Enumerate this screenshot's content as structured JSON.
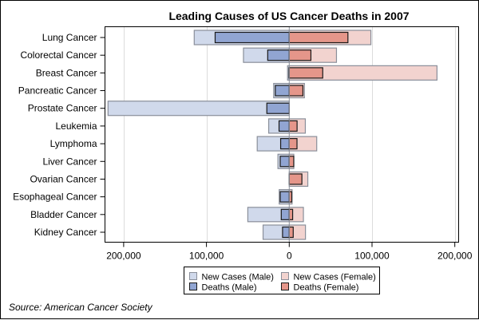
{
  "chart_data": {
    "type": "bar",
    "orientation": "horizontal",
    "layout": "butterfly",
    "title": "Leading Causes of US Cancer Deaths in 2007",
    "xlabel": "",
    "ylabel": "",
    "xlim": [
      -215000,
      205000
    ],
    "x_ticks": [
      -200000,
      -100000,
      0,
      100000,
      200000
    ],
    "x_tick_labels": [
      "200,000",
      "100,000",
      "0",
      "100,000",
      "200,000"
    ],
    "grid": true,
    "legend_position": "bottom",
    "categories": [
      "Lung Cancer",
      "Colorectal Cancer",
      "Breast Cancer",
      "Pancreatic Cancer",
      "Prostate Cancer",
      "Leukemia",
      "Lymphoma",
      "Liver Cancer",
      "Ovarian Cancer",
      "Esophageal Cancer",
      "Bladder Cancer",
      "Kidney Cancer"
    ],
    "series": [
      {
        "name": "New Cases (Male)",
        "side": "left",
        "kind": "new",
        "color": "#D0D9EB",
        "values": [
          114760,
          55290,
          2030,
          18830,
          218890,
          24800,
          38670,
          13650,
          0,
          12130,
          50040,
          31590
        ]
      },
      {
        "name": "Deaths (Male)",
        "side": "left",
        "kind": "deaths",
        "color": "#91A5D2",
        "values": [
          89510,
          26000,
          450,
          16840,
          27050,
          12320,
          10370,
          10900,
          0,
          10900,
          9630,
          8080
        ]
      },
      {
        "name": "New Cases (Female)",
        "side": "right",
        "kind": "new",
        "color": "#F2D3CF",
        "values": [
          98620,
          57050,
          178480,
          18340,
          0,
          19440,
          33190,
          5510,
          22430,
          3430,
          17120,
          19600
        ]
      },
      {
        "name": "Deaths (Female)",
        "side": "right",
        "kind": "deaths",
        "color": "#E5968A",
        "values": [
          70880,
          26180,
          40460,
          16530,
          0,
          9470,
          9370,
          5460,
          15280,
          3040,
          4120,
          4810
        ]
      }
    ],
    "legend": [
      {
        "label": "New Cases (Male)",
        "color": "#D0D9EB",
        "kind": "new"
      },
      {
        "label": "New Cases (Female)",
        "color": "#F2D3CF",
        "kind": "new"
      },
      {
        "label": "Deaths (Male)",
        "color": "#91A5D2",
        "kind": "deaths"
      },
      {
        "label": "Deaths (Female)",
        "color": "#E5968A",
        "kind": "deaths"
      }
    ],
    "source": "Source: American Cancer Society",
    "colors": {
      "new_outline": "#8A8F9A",
      "deaths_outline": "#1a1a1a",
      "grid": "#DCDCDC",
      "zero_line": "#8A8F9A"
    }
  }
}
